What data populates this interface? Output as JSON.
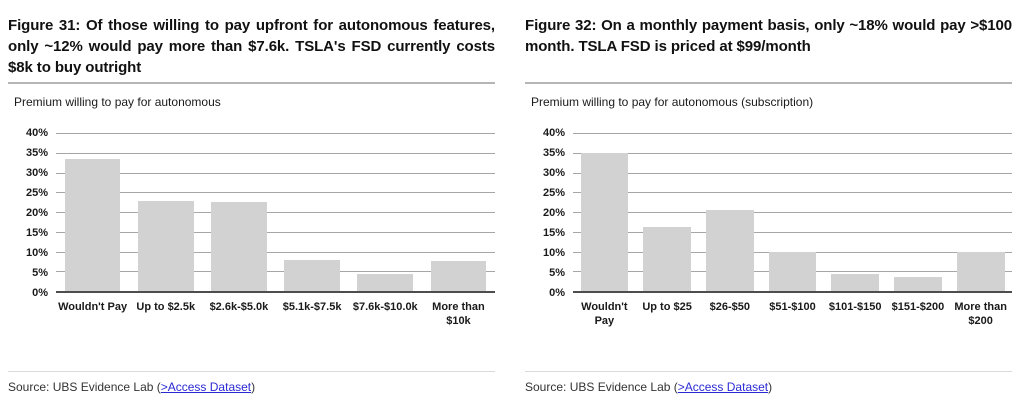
{
  "figures": [
    {
      "title": "Figure 31: Of those willing to pay upfront for autonomous features, only ~12% would pay more than $7.6k. TSLA's FSD currently costs $8k to buy outright",
      "subtitle": "Premium willing to pay for autonomous",
      "source_prefix": "Source: UBS Evidence Lab (",
      "source_link": ">Access Dataset",
      "source_suffix": ")"
    },
    {
      "title": "Figure 32: On a monthly payment basis, only ~18% would pay >$100 month. TSLA FSD is priced at $99/month",
      "subtitle": "Premium willing to pay for autonomous (subscription)",
      "source_prefix": "Source: UBS Evidence Lab (",
      "source_link": ">Access Dataset",
      "source_suffix": ")"
    }
  ],
  "chart_data": [
    {
      "type": "bar",
      "title": "Premium willing to pay for autonomous",
      "categories": [
        "Wouldn't Pay",
        "Up to $2.5k",
        "$2.6k-$5.0k",
        "$5.1k-$7.5k",
        "$7.6k-$10.0k",
        "More than $10k"
      ],
      "values": [
        33.4,
        22.8,
        22.5,
        7.9,
        4.2,
        7.5
      ],
      "xlabel": "",
      "ylabel": "",
      "ylim": [
        0,
        40
      ],
      "ytick_step": 5,
      "ytick_format": "percent",
      "grid": true,
      "legend": "none"
    },
    {
      "type": "bar",
      "title": "Premium willing to pay for autonomous (subscription)",
      "categories": [
        "Wouldn't Pay",
        "Up to $25",
        "$26-$50",
        "$51-$100",
        "$101-$150",
        "$151-$200",
        "More than $200"
      ],
      "values": [
        35,
        16.2,
        20.4,
        10,
        4.2,
        3.5,
        10
      ],
      "xlabel": "",
      "ylabel": "",
      "ylim": [
        0,
        40
      ],
      "ytick_step": 5,
      "ytick_format": "percent",
      "grid": true,
      "legend": "none"
    }
  ],
  "colors": {
    "bar": "#d2d2d2",
    "gridline": "#a6a6a6",
    "axis": "#4d4d4d",
    "title_rule": "#b5b5b5",
    "source_rule": "#d9d9d9",
    "link": "#2a2ad4"
  }
}
